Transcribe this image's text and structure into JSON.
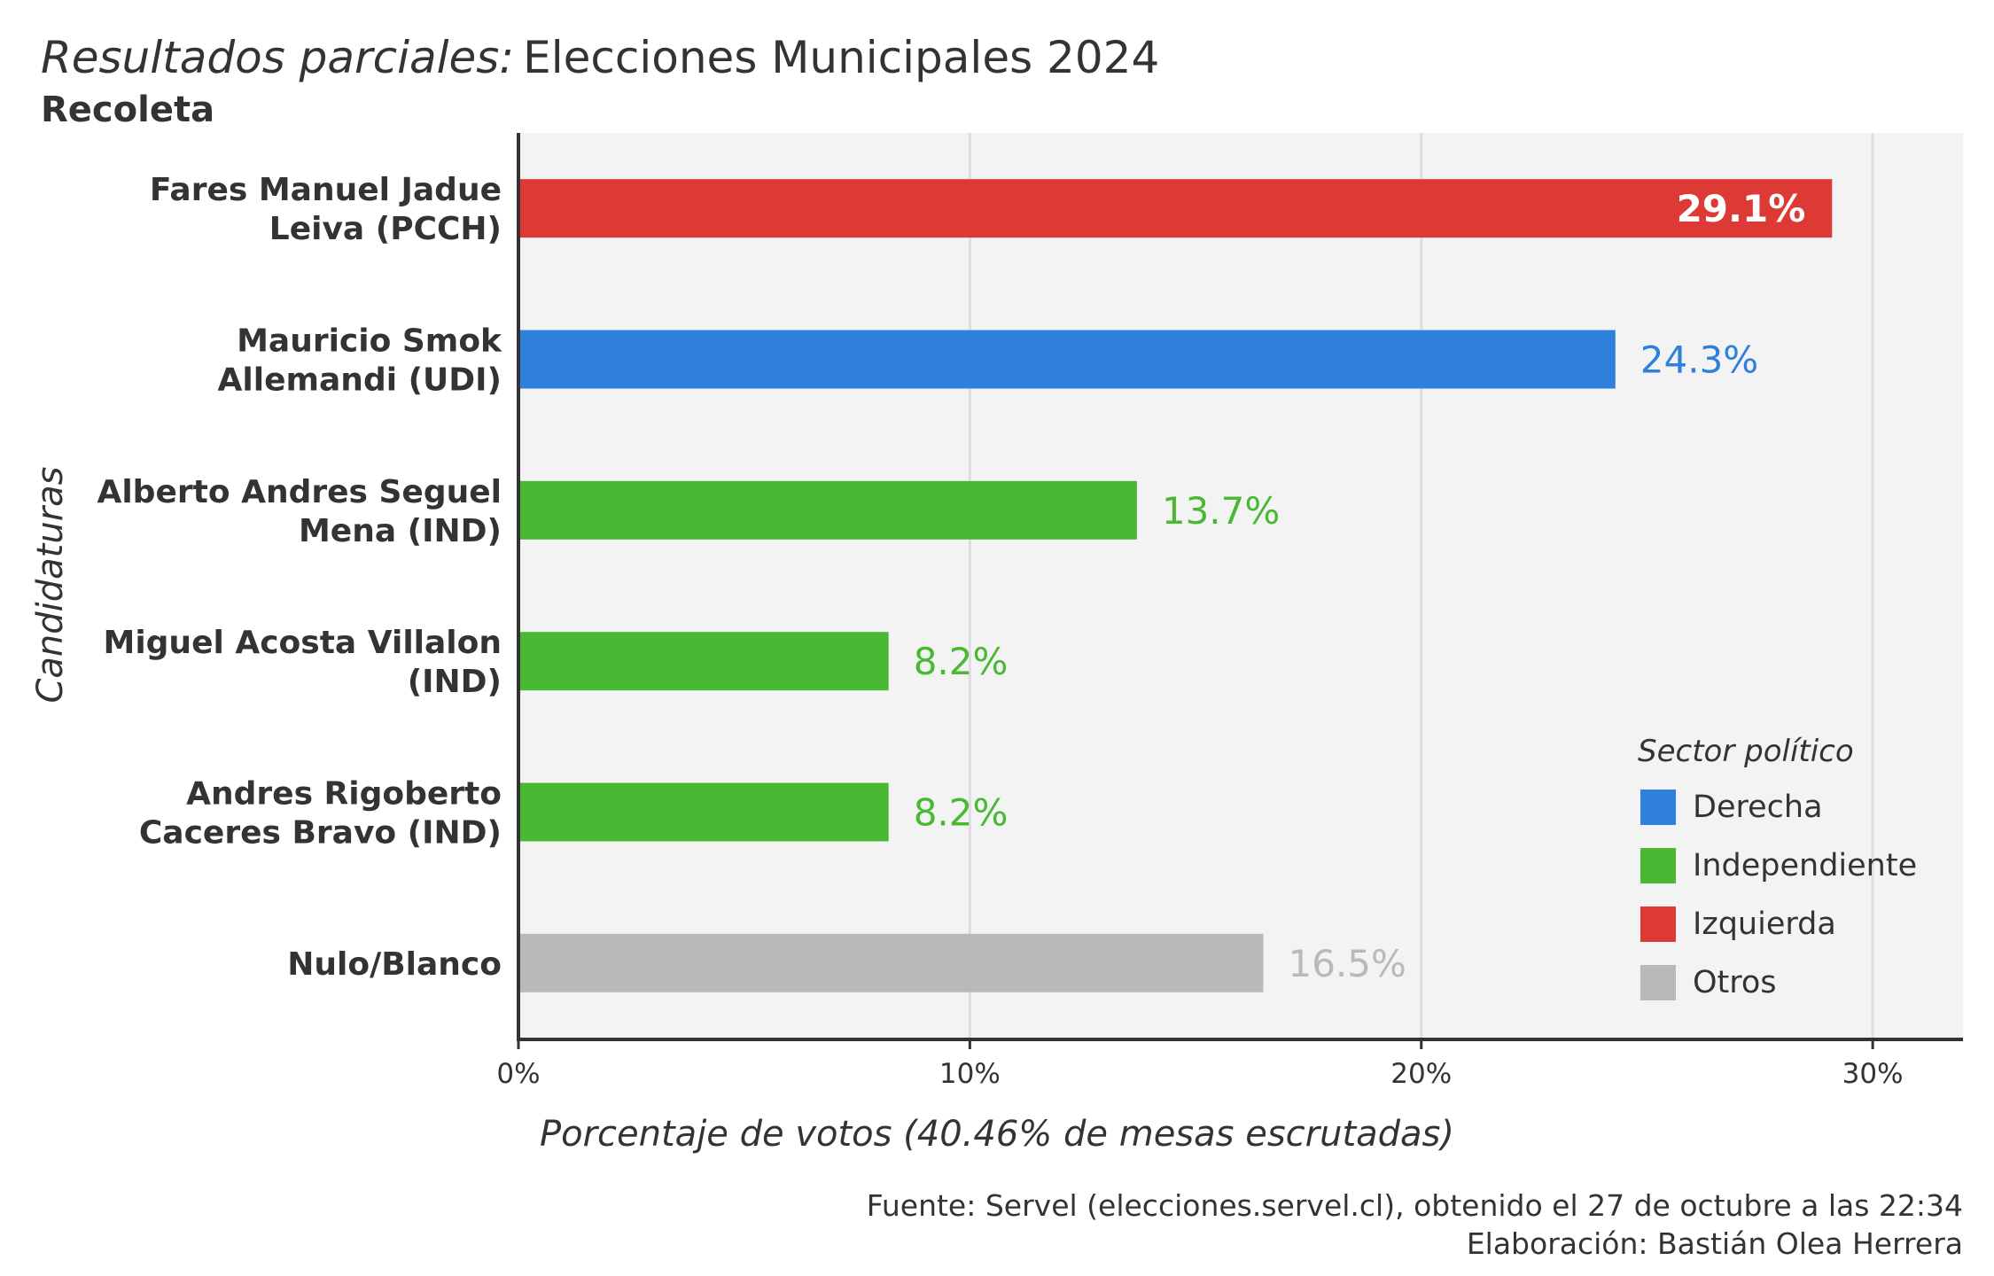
{
  "chart_data": {
    "type": "bar",
    "orientation": "horizontal",
    "title_italic": "Resultados parciales:",
    "title_rest": "Elecciones Municipales 2024",
    "subtitle": "Recoleta",
    "ylabel": "Candidaturas",
    "xlabel": "Porcentaje de votos (40.46% de mesas escrutadas)",
    "xlim": [
      0,
      32
    ],
    "xticks": [
      0,
      10,
      20,
      30
    ],
    "xtick_labels": [
      "0%",
      "10%",
      "20%",
      "30%"
    ],
    "grid": true,
    "bars": [
      {
        "lines": [
          "Fares Manuel Jadue",
          "Leiva (PCCH)"
        ],
        "value": 29.1,
        "label": "29.1%",
        "sector": "Izquierda"
      },
      {
        "lines": [
          "Mauricio Smok",
          "Allemandi (UDI)"
        ],
        "value": 24.3,
        "label": "24.3%",
        "sector": "Derecha"
      },
      {
        "lines": [
          "Alberto Andres Seguel",
          "Mena (IND)"
        ],
        "value": 13.7,
        "label": "13.7%",
        "sector": "Independiente"
      },
      {
        "lines": [
          "Miguel Acosta Villalon",
          "(IND)"
        ],
        "value": 8.2,
        "label": "8.2%",
        "sector": "Independiente"
      },
      {
        "lines": [
          "Andres Rigoberto",
          "Caceres Bravo (IND)"
        ],
        "value": 8.2,
        "label": "8.2%",
        "sector": "Independiente"
      },
      {
        "lines": [
          "Nulo/Blanco"
        ],
        "value": 16.5,
        "label": "16.5%",
        "sector": "Otros"
      }
    ],
    "legend": {
      "title": "Sector político",
      "position": "bottom-right",
      "items": [
        {
          "name": "Derecha",
          "color": "#2f80dd"
        },
        {
          "name": "Independiente",
          "color": "#49b934"
        },
        {
          "name": "Izquierda",
          "color": "#dd3a36"
        },
        {
          "name": "Otros",
          "color": "#b9b9b9"
        }
      ]
    },
    "caption": [
      "Fuente: Servel (elecciones.servel.cl), obtenido el 27 de octubre a las 22:34",
      "Elaboración: Bastián Olea Herrera"
    ]
  }
}
